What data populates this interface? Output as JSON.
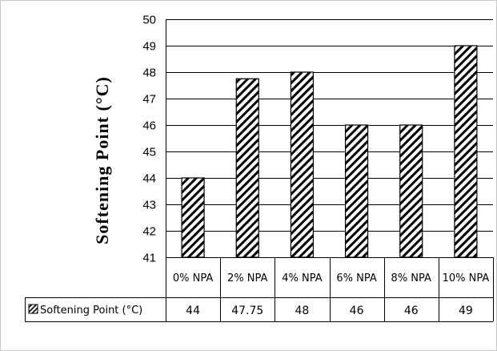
{
  "chart_data": {
    "type": "bar",
    "title": "",
    "xlabel": "",
    "ylabel": "Softening Point (°C)",
    "ylim": [
      41,
      50
    ],
    "yticks": [
      41,
      42,
      43,
      44,
      45,
      46,
      47,
      48,
      49,
      50
    ],
    "grid": true,
    "categories": [
      "0% NPA",
      "2% NPA",
      "4% NPA",
      "6% NPA",
      "8% NPA",
      "10% NPA"
    ],
    "series": [
      {
        "name": "Softening Point (°C)",
        "values": [
          44,
          47.75,
          48,
          46,
          46,
          49
        ],
        "value_labels": [
          "44",
          "47.75",
          "48",
          "46",
          "46",
          "49"
        ],
        "pattern": "diagonal-hatch"
      }
    ],
    "data_table": true
  }
}
